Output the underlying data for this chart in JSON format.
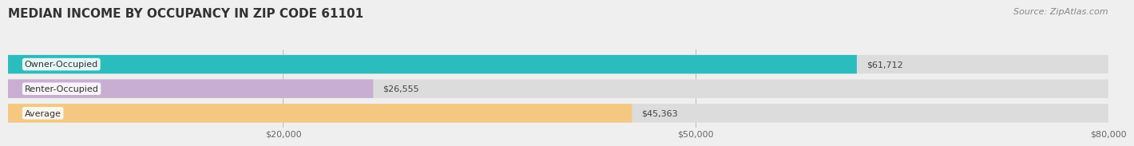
{
  "title": "MEDIAN INCOME BY OCCUPANCY IN ZIP CODE 61101",
  "source": "Source: ZipAtlas.com",
  "categories": [
    "Owner-Occupied",
    "Renter-Occupied",
    "Average"
  ],
  "values": [
    61712,
    26555,
    45363
  ],
  "bar_colors": [
    "#2bbcbe",
    "#c9aed4",
    "#f5c882"
  ],
  "label_texts": [
    "$61,712",
    "$26,555",
    "$45,363"
  ],
  "xlim": [
    0,
    80000
  ],
  "xticks": [
    20000,
    50000,
    80000
  ],
  "xtick_labels": [
    "$20,000",
    "$50,000",
    "$80,000"
  ],
  "background_color": "#efefef",
  "bar_bg_color": "#dcdcdc",
  "title_fontsize": 11,
  "source_fontsize": 8,
  "bar_height": 0.58,
  "bar_label_fontsize": 8,
  "category_fontsize": 8
}
